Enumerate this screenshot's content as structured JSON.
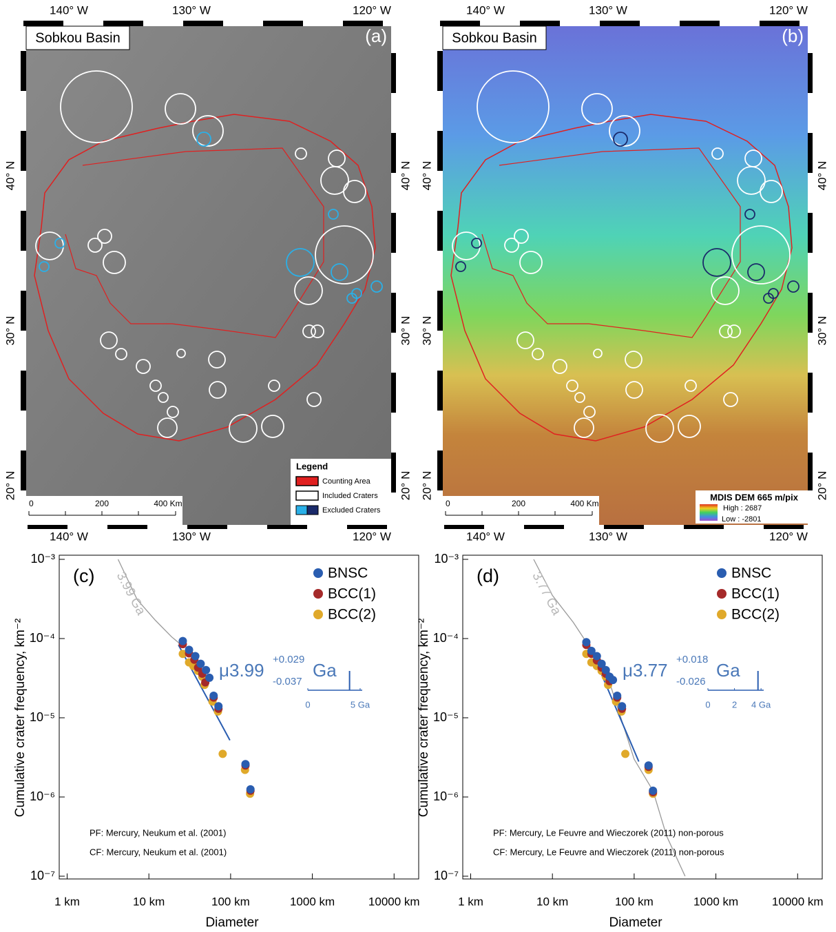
{
  "maps": [
    {
      "title": "Sobkou Basin",
      "panel": "(a)",
      "lon_labels": [
        "140° W",
        "130° W",
        "120° W"
      ],
      "lat_labels": [
        "40° N",
        "30° N",
        "20° N"
      ],
      "scale_labels": [
        "0",
        "200",
        "400 Km"
      ],
      "legend": {
        "title": "Legend",
        "items": [
          "Counting Area",
          "Included Craters",
          "Excluded Craters"
        ]
      }
    },
    {
      "title": "Sobkou Basin",
      "panel": "(b)",
      "lon_labels": [
        "140° W",
        "130° W",
        "120° W"
      ],
      "lat_labels": [
        "40° N",
        "30° N",
        "20° N"
      ],
      "scale_labels": [
        "0",
        "200",
        "400 Km"
      ],
      "dem_legend": {
        "title": "MDIS DEM 665 m/pix",
        "high": "High : 2687",
        "low": "Low : -2801"
      }
    }
  ],
  "chart_data": [
    {
      "type": "scatter",
      "panel": "(c)",
      "xlabel": "Diameter",
      "ylabel": "Cumulative crater frequency, km⁻²",
      "xscale": "log",
      "yscale": "log",
      "xlim": [
        0.8,
        20000
      ],
      "ylim": [
        1e-07,
        0.001
      ],
      "xticks": [
        {
          "value": 1,
          "label": "1 km"
        },
        {
          "value": 10,
          "label": "10 km"
        },
        {
          "value": 100,
          "label": "100 km"
        },
        {
          "value": 1000,
          "label": "1000 km"
        },
        {
          "value": 10000,
          "label": "10000 km"
        }
      ],
      "yticks": [
        {
          "value": 0.001,
          "label": "10⁻³"
        },
        {
          "value": 0.0001,
          "label": "10⁻⁴"
        },
        {
          "value": 1e-05,
          "label": "10⁻⁵"
        },
        {
          "value": 1e-06,
          "label": "10⁻⁶"
        },
        {
          "value": 1e-07,
          "label": "10⁻⁷"
        }
      ],
      "series": [
        {
          "name": "BNSC",
          "color": "#2a5db0",
          "x": [
            26,
            31,
            37,
            43,
            50,
            55,
            62,
            71,
            152,
            175
          ],
          "values": [
            9.3e-05,
            7.2e-05,
            6e-05,
            4.8e-05,
            4e-05,
            3.2e-05,
            1.9e-05,
            1.4e-05,
            2.6e-06,
            1.25e-06
          ]
        },
        {
          "name": "BCC(1)",
          "color": "#a52a2a",
          "x": [
            26,
            31,
            36,
            40,
            45,
            49,
            62,
            71,
            152,
            175
          ],
          "values": [
            8.5e-05,
            6.5e-05,
            5.4e-05,
            4.3e-05,
            3.6e-05,
            2.8e-05,
            1.8e-05,
            1.3e-05,
            2.5e-06,
            1.2e-06
          ]
        },
        {
          "name": "BCC(2)",
          "color": "#e0a92a",
          "x": [
            26,
            31,
            35,
            40,
            45,
            48,
            60,
            70,
            80,
            150,
            173
          ],
          "values": [
            6.4e-05,
            5e-05,
            4.5e-05,
            3.9e-05,
            3.3e-05,
            2.6e-05,
            1.6e-05,
            1.2e-05,
            3.5e-06,
            2.2e-06,
            1.1e-06
          ]
        }
      ],
      "isochron": {
        "label": "3.99 Ga",
        "x": [
          4.2,
          7.2,
          12,
          19,
          26
        ],
        "y": [
          0.001,
          0.00031,
          0.00017,
          0.000105,
          8e-05
        ]
      },
      "fit": {
        "x": [
          23,
          98
        ],
        "y": [
          8.3e-05,
          5.2e-06
        ]
      },
      "age_label": "μ3.99",
      "age_plus": "+0.029",
      "age_minus": "-0.037",
      "age_unit": "Ga",
      "inset": {
        "xlim": [
          0,
          5.2
        ],
        "xticks": [
          0,
          {
            "value": 5,
            "label": "5 Ga"
          }
        ],
        "peak": 3.99
      },
      "notes": [
        "PF: Mercury, Neukum et al. (2001)",
        "CF: Mercury, Neukum et al. (2001)"
      ]
    },
    {
      "type": "scatter",
      "panel": "(d)",
      "xlabel": "Diameter",
      "ylabel": "Cumulative crater frequency, km⁻²",
      "xscale": "log",
      "yscale": "log",
      "xlim": [
        0.8,
        20000
      ],
      "ylim": [
        1e-07,
        0.001
      ],
      "xticks": [
        {
          "value": 1,
          "label": "1 km"
        },
        {
          "value": 10,
          "label": "10 km"
        },
        {
          "value": 100,
          "label": "100 km"
        },
        {
          "value": 1000,
          "label": "1000 km"
        },
        {
          "value": 10000,
          "label": "10000 km"
        }
      ],
      "yticks": [
        {
          "value": 0.001,
          "label": "10⁻³"
        },
        {
          "value": 0.0001,
          "label": "10⁻⁴"
        },
        {
          "value": 1e-05,
          "label": "10⁻⁵"
        },
        {
          "value": 1e-06,
          "label": "10⁻⁶"
        },
        {
          "value": 1e-07,
          "label": "10⁻⁷"
        }
      ],
      "series": [
        {
          "name": "BNSC",
          "color": "#2a5db0",
          "x": [
            26,
            30,
            35,
            40,
            45,
            50,
            55,
            62,
            71,
            150,
            170
          ],
          "values": [
            9e-05,
            7e-05,
            6e-05,
            4.8e-05,
            4e-05,
            3.3e-05,
            3e-05,
            1.9e-05,
            1.4e-05,
            2.5e-06,
            1.2e-06
          ]
        },
        {
          "name": "BCC(1)",
          "color": "#a52a2a",
          "x": [
            26,
            30,
            35,
            40,
            45,
            50,
            62,
            71,
            150,
            170
          ],
          "values": [
            8.3e-05,
            6.4e-05,
            5.3e-05,
            4.3e-05,
            3.6e-05,
            2.9e-05,
            1.8e-05,
            1.3e-05,
            2.4e-06,
            1.15e-06
          ]
        },
        {
          "name": "BCC(2)",
          "color": "#e0a92a",
          "x": [
            26,
            30,
            35,
            40,
            45,
            48,
            60,
            70,
            78,
            150,
            170
          ],
          "values": [
            6.4e-05,
            5e-05,
            4.5e-05,
            3.9e-05,
            3.3e-05,
            2.6e-05,
            1.6e-05,
            1.2e-05,
            3.5e-06,
            2.2e-06,
            1.1e-06
          ]
        }
      ],
      "isochron": {
        "label": "3.77 Ga",
        "x": [
          5.9,
          10,
          18,
          26,
          50,
          100,
          170,
          250,
          420
        ],
        "y": [
          0.001,
          0.00035,
          0.00016,
          9e-05,
          2.8e-05,
          3e-06,
          1.2e-06,
          3.2e-07,
          1e-07
        ]
      },
      "fit": {
        "x": [
          28,
          114
        ],
        "y": [
          8.3e-05,
          2.8e-06
        ]
      },
      "age_label": "μ3.77",
      "age_plus": "+0.018",
      "age_minus": "-0.026",
      "age_unit": "Ga",
      "inset": {
        "xlim": [
          0,
          4.2
        ],
        "xticks": [
          0,
          2,
          {
            "value": 4,
            "label": "4 Ga"
          }
        ],
        "peak": 3.77
      },
      "notes": [
        "PF: Mercury, Le Feuvre and Wieczorek (2011) non-porous",
        "CF: Mercury, Le Feuvre and Wieczorek (2011) non-porous"
      ]
    }
  ]
}
